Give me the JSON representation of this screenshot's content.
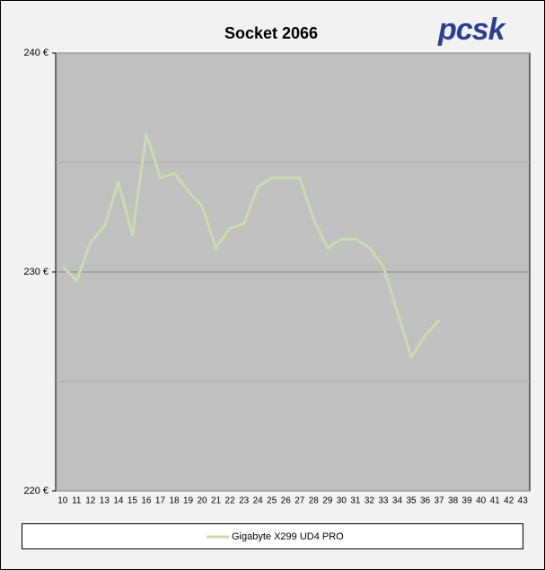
{
  "chart_data": {
    "type": "line",
    "title": "Socket 2066",
    "logo": "pcsk",
    "categories": [
      "10",
      "11",
      "12",
      "13",
      "14",
      "15",
      "16",
      "17",
      "18",
      "19",
      "20",
      "21",
      "22",
      "23",
      "24",
      "25",
      "26",
      "27",
      "28",
      "29",
      "30",
      "31",
      "32",
      "33",
      "34",
      "35",
      "36",
      "37",
      "38",
      "39",
      "40",
      "41",
      "42",
      "43"
    ],
    "series": [
      {
        "name": "Gigabyte X299 UD4 PRO",
        "color": "#c9dcb0",
        "values": [
          230.25,
          229.6,
          231.35,
          232.1,
          234.1,
          231.7,
          236.3,
          234.3,
          234.5,
          233.7,
          233.0,
          231.1,
          232.0,
          232.2,
          233.9,
          234.3,
          234.3,
          234.3,
          232.4,
          231.1,
          231.5,
          231.5,
          231.1,
          230.25,
          228.2,
          226.1,
          227.1,
          227.8,
          null,
          null,
          null,
          null,
          null,
          null
        ]
      }
    ],
    "ylim": [
      220,
      240
    ],
    "yticks": [
      {
        "value": 220,
        "label": "220 €"
      },
      {
        "value": 230,
        "label": "230 €"
      },
      {
        "value": 240,
        "label": "240 €"
      }
    ],
    "minor_yticks": [
      225,
      235
    ],
    "grid": true,
    "legend": "bottom"
  }
}
